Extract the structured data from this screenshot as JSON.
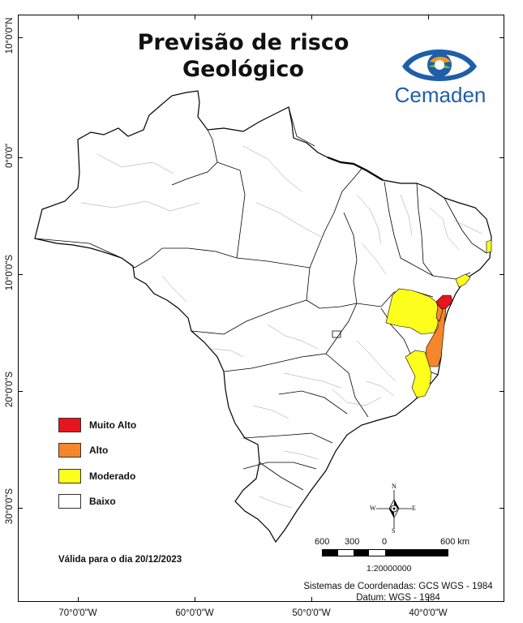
{
  "title": {
    "line1": "Previsão de risco",
    "line2": "Geológico"
  },
  "logo": {
    "name": "Cemaden",
    "colors": {
      "blue": "#1f5ea8",
      "green": "#6cbf3c",
      "orange": "#f39a1f"
    }
  },
  "axes": {
    "latitude_labels": [
      "10°0'0\"N",
      "0°0'0\"",
      "10°0'0\"S",
      "20°0'0\"S",
      "30°0'0\"S"
    ],
    "longitude_labels": [
      "70°0'0\"W",
      "60°0'0\"W",
      "50°0'0\"W",
      "40°0'0\"W"
    ]
  },
  "legend": {
    "items": [
      {
        "label": "Muito Alto",
        "color": "#e8141e"
      },
      {
        "label": "Alto",
        "color": "#f5862b"
      },
      {
        "label": "Moderado",
        "color": "#ffff1e"
      },
      {
        "label": "Baixo",
        "color": "#ffffff"
      }
    ]
  },
  "validity": "Válida para o dia 20/12/2023",
  "compass": {
    "n": "N",
    "s": "S",
    "e": "E",
    "w": "W"
  },
  "scale": {
    "labels": [
      "600",
      "300",
      "0",
      "600 km"
    ],
    "ratio": "1:20000000"
  },
  "coordinate_system": {
    "line1": "Sistemas de Coordenadas: GCS WGS - 1984",
    "line2": "Datum: WGS - 1984"
  }
}
